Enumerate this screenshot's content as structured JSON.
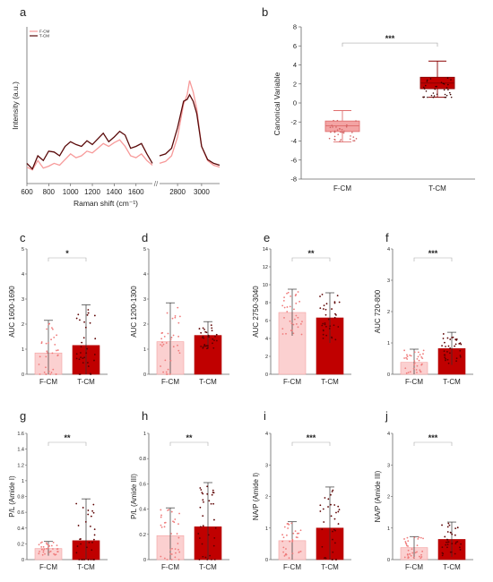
{
  "colors": {
    "fcm": "#f79a9a",
    "fcm_bar": "#fbd0d0",
    "tcm": "#c00000",
    "tcm_dark": "#5a0a0a",
    "axis": "#666666",
    "text": "#222222"
  },
  "chart_data": [
    {
      "panel": "a",
      "type": "line",
      "xlabel": "Raman shift (cm⁻¹)",
      "ylabel": "Intensity (a.u.)",
      "xticks": [
        600,
        800,
        1000,
        1200,
        1400,
        1600,
        2800,
        3000
      ],
      "xlim_left": [
        600,
        1750
      ],
      "xlim_right": [
        2650,
        3150
      ],
      "axis_break": "//",
      "series": [
        {
          "name": "F-CM",
          "x": [
            600,
            650,
            700,
            750,
            800,
            850,
            900,
            950,
            1000,
            1050,
            1100,
            1150,
            1200,
            1250,
            1300,
            1350,
            1400,
            1450,
            1500,
            1550,
            1600,
            1650,
            1700,
            1750,
            2650,
            2700,
            2750,
            2800,
            2850,
            2880,
            2900,
            2930,
            2960,
            3000,
            3050,
            3100,
            3150
          ],
          "y": [
            0.08,
            0.05,
            0.15,
            0.07,
            0.09,
            0.12,
            0.1,
            0.16,
            0.22,
            0.18,
            0.2,
            0.25,
            0.23,
            0.28,
            0.33,
            0.3,
            0.34,
            0.37,
            0.3,
            0.2,
            0.18,
            0.22,
            0.15,
            0.1,
            0.12,
            0.14,
            0.2,
            0.4,
            0.75,
            0.85,
            1.0,
            0.88,
            0.7,
            0.3,
            0.15,
            0.1,
            0.08
          ]
        },
        {
          "name": "T-CM",
          "x": [
            600,
            650,
            700,
            750,
            800,
            850,
            900,
            950,
            1000,
            1050,
            1100,
            1150,
            1200,
            1250,
            1300,
            1350,
            1400,
            1450,
            1500,
            1550,
            1600,
            1650,
            1700,
            1750,
            2650,
            2700,
            2750,
            2800,
            2850,
            2880,
            2900,
            2930,
            2960,
            3000,
            3050,
            3100,
            3150
          ],
          "y": [
            0.12,
            0.06,
            0.2,
            0.15,
            0.25,
            0.24,
            0.2,
            0.3,
            0.35,
            0.32,
            0.3,
            0.36,
            0.32,
            0.38,
            0.44,
            0.35,
            0.4,
            0.46,
            0.42,
            0.28,
            0.3,
            0.33,
            0.22,
            0.12,
            0.2,
            0.22,
            0.28,
            0.5,
            0.78,
            0.8,
            0.85,
            0.78,
            0.65,
            0.3,
            0.16,
            0.12,
            0.1
          ]
        }
      ]
    },
    {
      "panel": "b",
      "type": "box",
      "ylabel": "Canonical Variable",
      "categories": [
        "F-CM",
        "T-CM"
      ],
      "ylim": [
        -8,
        8
      ],
      "yticks": [
        -8,
        -6,
        -4,
        -2,
        0,
        2,
        4,
        6,
        8
      ],
      "boxes": [
        {
          "name": "F-CM",
          "min": -4.1,
          "q1": -3.0,
          "median": -2.4,
          "q3": -1.9,
          "max": -0.8
        },
        {
          "name": "T-CM",
          "min": 0.6,
          "q1": 1.5,
          "median": 2.1,
          "q3": 2.7,
          "max": 4.4
        }
      ],
      "significance": "***"
    },
    {
      "panel": "c",
      "type": "bar",
      "ylabel": "AUC 1600-1690",
      "categories": [
        "F-CM",
        "T-CM"
      ],
      "values": [
        0.85,
        1.15
      ],
      "errors": [
        1.3,
        1.62
      ],
      "ylim": [
        0,
        5
      ],
      "yticks": [
        0,
        1,
        2,
        3,
        4,
        5
      ],
      "significance": "*"
    },
    {
      "panel": "d",
      "type": "bar",
      "ylabel": "AUC 1200-1300",
      "categories": [
        "F-CM",
        "T-CM"
      ],
      "values": [
        1.3,
        1.55
      ],
      "errors": [
        1.55,
        0.55
      ],
      "ylim": [
        0,
        5
      ],
      "yticks": [
        0,
        1,
        2,
        3,
        4,
        5
      ],
      "significance": ""
    },
    {
      "panel": "e",
      "type": "bar",
      "ylabel": "AUC 2750-3040",
      "categories": [
        "F-CM",
        "T-CM"
      ],
      "values": [
        6.9,
        6.3
      ],
      "errors": [
        2.6,
        2.8
      ],
      "ylim": [
        0,
        14
      ],
      "yticks": [
        0,
        2,
        4,
        6,
        8,
        10,
        12,
        14
      ],
      "significance": "**"
    },
    {
      "panel": "f",
      "type": "bar",
      "ylabel": "AUC 720-800",
      "categories": [
        "F-CM",
        "T-CM"
      ],
      "values": [
        0.38,
        0.82
      ],
      "errors": [
        0.42,
        0.52
      ],
      "ylim": [
        0,
        4
      ],
      "yticks": [
        0,
        1,
        2,
        3,
        4
      ],
      "significance": "***"
    },
    {
      "panel": "g",
      "type": "bar",
      "ylabel": "P/L (Amide I)",
      "categories": [
        "F-CM",
        "T-CM"
      ],
      "values": [
        0.14,
        0.24
      ],
      "errors": [
        0.09,
        0.53
      ],
      "ylim": [
        0,
        1.6
      ],
      "yticks": [
        0,
        0.2,
        0.4,
        0.6,
        0.8,
        1,
        1.2,
        1.4,
        1.6
      ],
      "significance": "**"
    },
    {
      "panel": "h",
      "type": "bar",
      "ylabel": "P/L (Amide III)",
      "categories": [
        "F-CM",
        "T-CM"
      ],
      "values": [
        0.19,
        0.26
      ],
      "errors": [
        0.22,
        0.35
      ],
      "ylim": [
        0,
        1
      ],
      "yticks": [
        0,
        0.2,
        0.4,
        0.6,
        0.8,
        1
      ],
      "significance": "**"
    },
    {
      "panel": "i",
      "type": "bar",
      "ylabel": "NA/P (Amide I)",
      "categories": [
        "F-CM",
        "T-CM"
      ],
      "values": [
        0.6,
        1.0
      ],
      "errors": [
        0.6,
        1.3
      ],
      "ylim": [
        0,
        4
      ],
      "yticks": [
        0,
        1,
        2,
        3,
        4
      ],
      "significance": "***"
    },
    {
      "panel": "j",
      "type": "bar",
      "ylabel": "NA/P (Amide III)",
      "categories": [
        "F-CM",
        "T-CM"
      ],
      "values": [
        0.38,
        0.64
      ],
      "errors": [
        0.35,
        0.55
      ],
      "ylim": [
        0,
        4
      ],
      "yticks": [
        0,
        1,
        2,
        3,
        4
      ],
      "significance": "***"
    }
  ]
}
